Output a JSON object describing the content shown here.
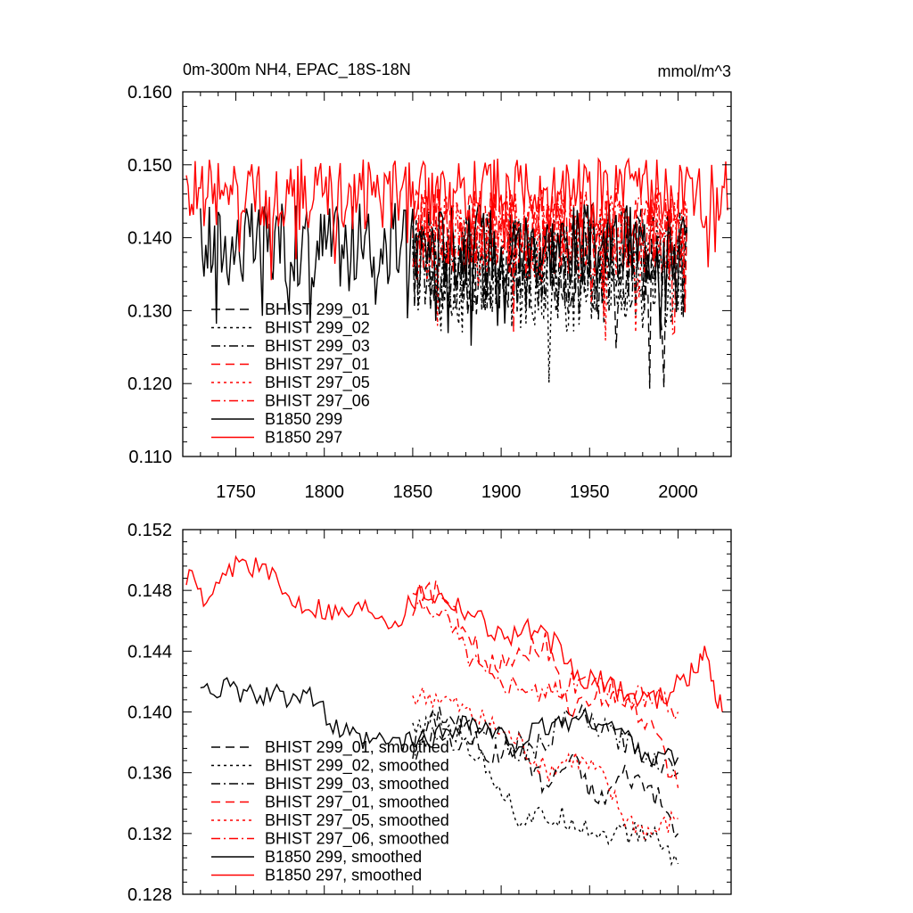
{
  "chart_data": [
    {
      "type": "line",
      "title": "0m-300m NH4, EPAC_18S-18N",
      "units": "mmol/m^3",
      "xlim": [
        1720,
        2030
      ],
      "ylim": [
        0.11,
        0.16
      ],
      "xticks": [
        1750,
        1800,
        1850,
        1900,
        1950,
        2000
      ],
      "xtick_labels": [
        "1750",
        "1800",
        "1850",
        "1900",
        "1950",
        "2000"
      ],
      "yticks": [
        0.11,
        0.12,
        0.13,
        0.14,
        0.15,
        0.16
      ],
      "ytick_labels": [
        "0.110",
        "0.120",
        "0.130",
        "0.140",
        "0.150",
        "0.160"
      ],
      "legend_position": "lower-left",
      "grid": false,
      "series": [
        {
          "name": "BHIST 299_01",
          "color": "#000000",
          "dash": "dash",
          "x_range": [
            1850,
            2005
          ],
          "mean": 0.136,
          "spread": 0.007,
          "seed": 11
        },
        {
          "name": "BHIST 299_02",
          "color": "#000000",
          "dash": "dot",
          "x_range": [
            1850,
            2005
          ],
          "mean": 0.135,
          "spread": 0.008,
          "seed": 12
        },
        {
          "name": "BHIST 299_03",
          "color": "#000000",
          "dash": "dashdot",
          "x_range": [
            1850,
            2005
          ],
          "mean": 0.137,
          "spread": 0.007,
          "seed": 13
        },
        {
          "name": "BHIST 297_01",
          "color": "#ff0000",
          "dash": "dash",
          "x_range": [
            1850,
            2005
          ],
          "mean": 0.141,
          "spread": 0.006,
          "seed": 14
        },
        {
          "name": "BHIST 297_05",
          "color": "#ff0000",
          "dash": "dot",
          "x_range": [
            1850,
            2005
          ],
          "mean": 0.14,
          "spread": 0.006,
          "seed": 15
        },
        {
          "name": "BHIST 297_06",
          "color": "#ff0000",
          "dash": "dashdot",
          "x_range": [
            1850,
            2005
          ],
          "mean": 0.141,
          "spread": 0.006,
          "seed": 16
        },
        {
          "name": "B1850 299",
          "color": "#000000",
          "dash": "solid",
          "x_range": [
            1730,
            2005
          ],
          "mean": 0.139,
          "spread": 0.006,
          "seed": 17
        },
        {
          "name": "B1850 297",
          "color": "#ff0000",
          "dash": "solid",
          "x_range": [
            1722,
            2028
          ],
          "mean": 0.146,
          "spread": 0.005,
          "seed": 18
        }
      ]
    },
    {
      "type": "line",
      "xlim": [
        1720,
        2030
      ],
      "ylim": [
        0.128,
        0.152
      ],
      "xticks": [
        1750,
        1800,
        1850,
        1900,
        1950,
        2000
      ],
      "yticks": [
        0.128,
        0.132,
        0.136,
        0.14,
        0.144,
        0.148,
        0.152
      ],
      "ytick_labels": [
        "0.128",
        "0.132",
        "0.136",
        "0.140",
        "0.144",
        "0.148",
        "0.152"
      ],
      "legend_position": "lower-left",
      "grid": false,
      "series": [
        {
          "name": "BHIST 299_01, smoothed",
          "color": "#000000",
          "dash": "dash",
          "x": [
            1850,
            1865,
            1880,
            1895,
            1910,
            1925,
            1940,
            1955,
            1970,
            1985,
            2000
          ],
          "y": [
            0.1375,
            0.14,
            0.139,
            0.137,
            0.138,
            0.135,
            0.137,
            0.134,
            0.136,
            0.135,
            0.132
          ]
        },
        {
          "name": "BHIST 299_02, smoothed",
          "color": "#000000",
          "dash": "dot",
          "x": [
            1850,
            1865,
            1880,
            1895,
            1910,
            1925,
            1940,
            1955,
            1970,
            1985,
            2000
          ],
          "y": [
            0.1385,
            0.1395,
            0.138,
            0.136,
            0.133,
            0.133,
            0.133,
            0.132,
            0.132,
            0.132,
            0.13
          ]
        },
        {
          "name": "BHIST 299_03, smoothed",
          "color": "#000000",
          "dash": "dashdot",
          "x": [
            1850,
            1865,
            1880,
            1895,
            1910,
            1925,
            1940,
            1955,
            1970,
            1985,
            2000
          ],
          "y": [
            0.1375,
            0.1385,
            0.138,
            0.139,
            0.137,
            0.138,
            0.14,
            0.139,
            0.138,
            0.137,
            0.136
          ]
        },
        {
          "name": "BHIST 297_01, smoothed",
          "color": "#ff0000",
          "dash": "dash",
          "x": [
            1850,
            1865,
            1880,
            1895,
            1910,
            1925,
            1940,
            1955,
            1970,
            1985,
            2000
          ],
          "y": [
            0.1475,
            0.148,
            0.145,
            0.143,
            0.144,
            0.1445,
            0.14,
            0.141,
            0.141,
            0.139,
            0.135
          ]
        },
        {
          "name": "BHIST 297_05, smoothed",
          "color": "#ff0000",
          "dash": "dot",
          "x": [
            1850,
            1865,
            1880,
            1895,
            1910,
            1925,
            1940,
            1955,
            1970,
            1985,
            2000
          ],
          "y": [
            0.141,
            0.141,
            0.14,
            0.139,
            0.138,
            0.136,
            0.137,
            0.136,
            0.133,
            0.132,
            0.133
          ]
        },
        {
          "name": "BHIST 297_06, smoothed",
          "color": "#ff0000",
          "dash": "dashdot",
          "x": [
            1850,
            1865,
            1880,
            1895,
            1910,
            1925,
            1940,
            1955,
            1970,
            1985,
            2000
          ],
          "y": [
            0.1465,
            0.147,
            0.144,
            0.142,
            0.142,
            0.141,
            0.142,
            0.142,
            0.141,
            0.141,
            0.14
          ]
        },
        {
          "name": "B1850 299, smoothed",
          "color": "#000000",
          "dash": "solid",
          "x": [
            1730,
            1745,
            1760,
            1775,
            1790,
            1805,
            1820,
            1835,
            1850,
            1865,
            1880,
            1895,
            1910,
            1925,
            1940,
            1955,
            1970,
            1985,
            2000
          ],
          "y": [
            0.142,
            0.1415,
            0.141,
            0.141,
            0.1415,
            0.139,
            0.138,
            0.138,
            0.138,
            0.1385,
            0.1395,
            0.1385,
            0.138,
            0.139,
            0.1395,
            0.1395,
            0.1385,
            0.137,
            0.137
          ]
        },
        {
          "name": "B1850 297, smoothed",
          "color": "#ff0000",
          "dash": "solid",
          "x": [
            1722,
            1735,
            1750,
            1765,
            1780,
            1795,
            1810,
            1825,
            1840,
            1855,
            1870,
            1885,
            1900,
            1915,
            1930,
            1945,
            1960,
            1975,
            1990,
            2005,
            2015,
            2025
          ],
          "y": [
            0.149,
            0.147,
            0.15,
            0.1495,
            0.1475,
            0.147,
            0.1465,
            0.147,
            0.146,
            0.148,
            0.1475,
            0.1465,
            0.145,
            0.1455,
            0.1445,
            0.142,
            0.142,
            0.141,
            0.141,
            0.142,
            0.144,
            0.14
          ]
        }
      ]
    }
  ]
}
